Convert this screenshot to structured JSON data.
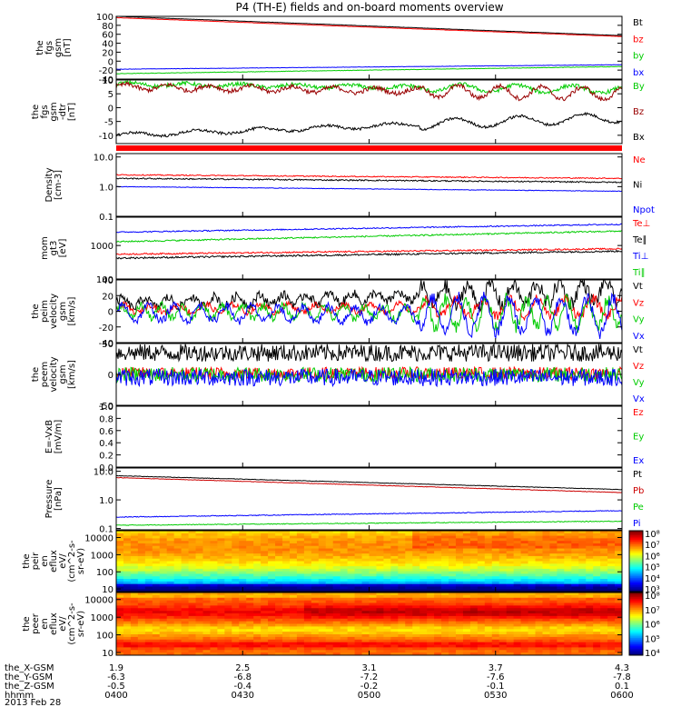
{
  "figure": {
    "title": "P4 (TH-E) fields and on-board moments overview",
    "date": "2013 Feb 28"
  },
  "chart_data": [
    {
      "type": "line",
      "title": "the fgs gsm",
      "ylabel": [
        "the",
        "fgs",
        "gsm",
        "[nT]"
      ],
      "yscale": "linear",
      "ylim": [
        -40,
        100
      ],
      "yticks": [
        100,
        80,
        60,
        40,
        20,
        0,
        -20,
        -40
      ],
      "series": [
        {
          "name": "Bt",
          "color": "#000000",
          "start": 100,
          "end": 57,
          "noise": 0.3,
          "amp": 0,
          "period": 0
        },
        {
          "name": "bz",
          "color": "#ff0000",
          "start": 97,
          "end": 55,
          "noise": 0.3,
          "amp": 0,
          "period": 0
        },
        {
          "name": "by",
          "color": "#00cc00",
          "start": -28,
          "end": -12,
          "noise": 0.5,
          "amp": 0,
          "period": 0
        },
        {
          "name": "bx",
          "color": "#0000ff",
          "start": -18,
          "end": -8,
          "noise": 0.4,
          "amp": 0,
          "period": 0
        }
      ]
    },
    {
      "type": "line",
      "title": "the fgs gsm dtr",
      "ylabel": [
        "the",
        "fgs",
        "gsm",
        "-dtr",
        "[nT]"
      ],
      "yscale": "linear",
      "ylim": [
        -13,
        10
      ],
      "yticks": [
        10,
        5,
        0,
        -5,
        -10
      ],
      "series": [
        {
          "name": "By",
          "color": "#00cc00",
          "start": 8.5,
          "end": 6.5,
          "noise": 0.7,
          "amp": 0.6,
          "period": 60
        },
        {
          "name": "Bz",
          "color": "#990000",
          "start": 7.5,
          "end": 5,
          "noise": 0.8,
          "amp": 1.0,
          "period": 45
        },
        {
          "name": "Bx",
          "color": "#000000",
          "start": -10,
          "end": -3.5,
          "noise": 0.5,
          "amp": 0.8,
          "period": 70
        }
      ]
    },
    {
      "type": "line",
      "title": "Density",
      "ylabel": [
        "Density",
        "[cm-3]"
      ],
      "yscale": "log",
      "ylim": [
        0.1,
        13
      ],
      "yticks": [
        10.0,
        1.0,
        0.1
      ],
      "ticklabels": [
        "10.0",
        "1.0",
        "0.1"
      ],
      "series": [
        {
          "name": "Ne",
          "color": "#ff0000",
          "start": 2.5,
          "end": 1.9,
          "noise": 0.04,
          "amp": 0,
          "period": 0
        },
        {
          "name": "Ni",
          "color": "#000000",
          "start": 1.9,
          "end": 1.4,
          "noise": 0.05,
          "amp": 0,
          "period": 0
        },
        {
          "name": "Npot",
          "color": "#0000ff",
          "start": 1.0,
          "end": 0.7,
          "noise": 0.02,
          "amp": 0,
          "period": 0
        }
      ]
    },
    {
      "type": "line",
      "title": "mom gt3",
      "ylabel": [
        "mom",
        "gt3",
        "[eV]"
      ],
      "yscale": "log",
      "ylim": [
        100,
        7000
      ],
      "yticks": [
        1000,
        100
      ],
      "ticklabels": [
        "1000",
        "100"
      ],
      "series": [
        {
          "name": "Te⊥",
          "color": "#ff0000",
          "start": 550,
          "end": 800,
          "noise": 0.05,
          "amp": 0,
          "period": 0
        },
        {
          "name": "Te∥",
          "color": "#000000",
          "start": 420,
          "end": 680,
          "noise": 0.06,
          "amp": 0,
          "period": 0
        },
        {
          "name": "Ti⊥",
          "color": "#0000ff",
          "start": 2500,
          "end": 4300,
          "noise": 0.04,
          "amp": 0,
          "period": 0
        },
        {
          "name": "Ti∥",
          "color": "#00cc00",
          "start": 1300,
          "end": 2700,
          "noise": 0.05,
          "amp": 0,
          "period": 0
        }
      ]
    },
    {
      "type": "line",
      "title": "the peim velocity gsm",
      "ylabel": [
        "the",
        "peim",
        "velocity",
        "gsm",
        "[km/s]"
      ],
      "yscale": "linear",
      "ylim": [
        -40,
        40
      ],
      "yticks": [
        40,
        20,
        0,
        -20,
        -40
      ],
      "series": [
        {
          "name": "Vt",
          "color": "#000000",
          "start": 10,
          "end": 25,
          "noise": 6,
          "amp": 6,
          "period": 25
        },
        {
          "name": "Vz",
          "color": "#ff0000",
          "start": 3,
          "end": 5,
          "noise": 4,
          "amp": 5,
          "period": 30
        },
        {
          "name": "Vy",
          "color": "#00cc00",
          "start": 0,
          "end": -3,
          "noise": 5,
          "amp": 8,
          "period": 22
        },
        {
          "name": "Vx",
          "color": "#0000ff",
          "start": -2,
          "end": -6,
          "noise": 5,
          "amp": 10,
          "period": 28
        }
      ]
    },
    {
      "type": "line",
      "title": "the peem velocity gsm",
      "ylabel": [
        "the",
        "peem",
        "velocity",
        "gsm",
        "[km/s]"
      ],
      "yscale": "linear",
      "ylim": [
        -50,
        50
      ],
      "yticks": [
        50,
        0,
        -50
      ],
      "series": [
        {
          "name": "Vt",
          "color": "#000000",
          "start": 35,
          "end": 35,
          "noise": 14,
          "amp": 0,
          "period": 0
        },
        {
          "name": "Vz",
          "color": "#ff0000",
          "start": 2,
          "end": 2,
          "noise": 10,
          "amp": 0,
          "period": 0
        },
        {
          "name": "Vy",
          "color": "#00cc00",
          "start": 0,
          "end": 0,
          "noise": 12,
          "amp": 0,
          "period": 0
        },
        {
          "name": "Vx",
          "color": "#0000ff",
          "start": -5,
          "end": -5,
          "noise": 14,
          "amp": 0,
          "period": 0
        }
      ]
    },
    {
      "type": "line",
      "title": "E=-VxB",
      "ylabel": [
        "E=-VxB",
        "[mV/m]"
      ],
      "yscale": "linear",
      "ylim": [
        0,
        1.0
      ],
      "yticks": [
        1.0,
        0.8,
        0.6,
        0.4,
        0.2,
        0.0
      ],
      "ticklabels": [
        "1.0",
        "0.8",
        "0.6",
        "0.4",
        "0.2",
        "0.0"
      ],
      "series": [
        {
          "name": "Ez",
          "color": "#ff0000",
          "start": null,
          "end": null,
          "noise": 0,
          "amp": 0,
          "period": 0
        },
        {
          "name": "Ey",
          "color": "#00cc00",
          "start": null,
          "end": null,
          "noise": 0,
          "amp": 0,
          "period": 0
        },
        {
          "name": "Ex",
          "color": "#0000ff",
          "start": null,
          "end": null,
          "noise": 0,
          "amp": 0,
          "period": 0
        }
      ]
    },
    {
      "type": "line",
      "title": "Pressure",
      "ylabel": [
        "Pressure",
        "[nPa]"
      ],
      "yscale": "log",
      "ylim": [
        0.09,
        13
      ],
      "yticks": [
        10.0,
        1.0,
        0.1
      ],
      "ticklabels": [
        "10.0",
        "1.0",
        "0.1"
      ],
      "series": [
        {
          "name": "Pt",
          "color": "#000000",
          "start": 7.0,
          "end": 2.3,
          "noise": 0.02,
          "amp": 0,
          "period": 0
        },
        {
          "name": "Pb",
          "color": "#cc0000",
          "start": 6.0,
          "end": 1.8,
          "noise": 0.02,
          "amp": 0,
          "period": 0
        },
        {
          "name": "Pe",
          "color": "#00cc00",
          "start": 0.13,
          "end": 0.18,
          "noise": 0.03,
          "amp": 0,
          "period": 0
        },
        {
          "name": "Pi",
          "color": "#0000ff",
          "start": 0.25,
          "end": 0.42,
          "noise": 0.03,
          "amp": 0,
          "period": 0
        }
      ]
    },
    {
      "type": "heatmap",
      "title": "the peir en eflux",
      "ylabel": [
        "the",
        "peir",
        "en",
        "eflux",
        "eV/",
        "(cm^2-s-",
        "sr-eV)"
      ],
      "yscale": "log",
      "ylim": [
        7,
        25000
      ],
      "yticks": [
        10000,
        1000,
        100,
        10
      ],
      "ticklabels": [
        "10000",
        "1000",
        "100",
        "10"
      ],
      "colorbar": {
        "range_log10": [
          2.7,
          8
        ],
        "ticks": [
          "10⁸",
          "10⁷",
          "10⁶",
          "10⁵",
          "10⁴",
          "10³"
        ]
      }
    },
    {
      "type": "heatmap",
      "title": "the peer en eflux",
      "ylabel": [
        "the",
        "peer",
        "en",
        "eflux",
        "eV/",
        "(cm^2-s-",
        "sr-eV)"
      ],
      "yscale": "log",
      "ylim": [
        7,
        25000
      ],
      "yticks": [
        10000,
        1000,
        100,
        10
      ],
      "ticklabels": [
        "10000",
        "1000",
        "100",
        "10"
      ],
      "colorbar": {
        "range_log10": [
          3.6,
          8
        ],
        "ticks": [
          "10⁸",
          "10⁷",
          "10⁶",
          "10⁵",
          "10⁴"
        ]
      }
    }
  ],
  "xaxis": {
    "labels": [
      "the_X-GSM",
      "the_Y-GSM",
      "the_Z-GSM",
      "hhmm"
    ],
    "values": [
      [
        "1.9",
        "2.5",
        "3.1",
        "3.7",
        "4.3"
      ],
      [
        "-6.3",
        "-6.8",
        "-7.2",
        "-7.6",
        "-7.8"
      ],
      [
        "-0.5",
        "-0.4",
        "-0.2",
        "-0.1",
        "0.1"
      ],
      [
        "0400",
        "0430",
        "0500",
        "0530",
        "0600"
      ]
    ]
  },
  "colors": {
    "frame": "#000000",
    "red_bar": "#ff0000"
  }
}
